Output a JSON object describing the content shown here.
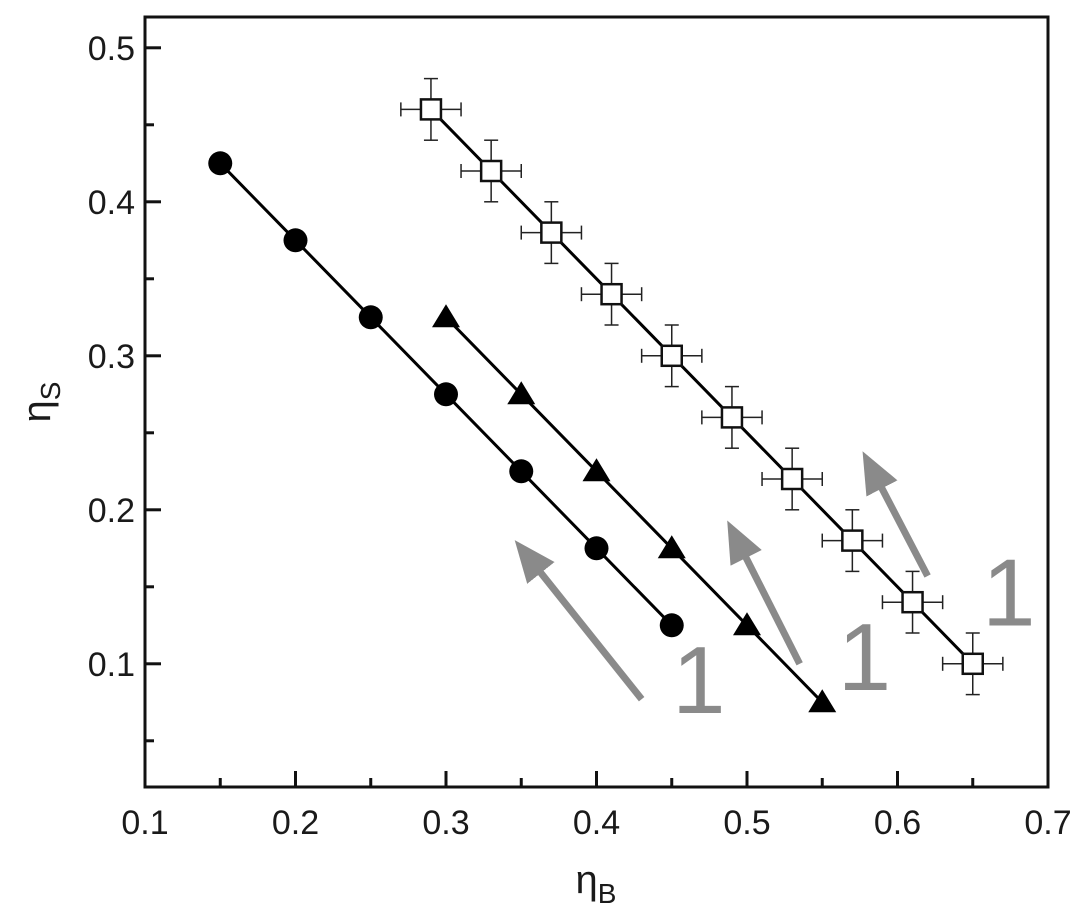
{
  "chart_data": {
    "type": "scatter",
    "xlabel": {
      "base": "η",
      "sub": "B"
    },
    "ylabel": {
      "base": "η",
      "sub": "S"
    },
    "xlim": [
      0.1,
      0.7
    ],
    "ylim": [
      0.02,
      0.52
    ],
    "x_ticks": [
      "0.1",
      "0.2",
      "0.3",
      "0.4",
      "0.5",
      "0.6",
      "0.7"
    ],
    "y_ticks": [
      "0.1",
      "0.2",
      "0.3",
      "0.4",
      "0.5"
    ],
    "series": [
      {
        "marker": "circle",
        "color": "#000000",
        "x": [
          0.15,
          0.2,
          0.25,
          0.3,
          0.35,
          0.4,
          0.45
        ],
        "y": [
          0.425,
          0.375,
          0.325,
          0.275,
          0.225,
          0.175,
          0.125
        ]
      },
      {
        "marker": "triangle",
        "color": "#000000",
        "x": [
          0.3,
          0.35,
          0.4,
          0.45,
          0.5,
          0.55
        ],
        "y": [
          0.325,
          0.275,
          0.225,
          0.175,
          0.125,
          0.075
        ]
      },
      {
        "marker": "open-square",
        "color": "#000000",
        "x": [
          0.29,
          0.33,
          0.37,
          0.41,
          0.45,
          0.49,
          0.53,
          0.57,
          0.61,
          0.65
        ],
        "y": [
          0.46,
          0.42,
          0.38,
          0.34,
          0.3,
          0.26,
          0.22,
          0.18,
          0.14,
          0.1
        ],
        "x_err": 0.02,
        "y_err": 0.02
      }
    ],
    "annotations": [
      {
        "text": "1",
        "arrow_from": [
          0.43,
          0.077
        ],
        "arrow_to": [
          0.35,
          0.175
        ],
        "label_at": [
          0.468,
          0.068
        ]
      },
      {
        "text": "1",
        "arrow_from": [
          0.535,
          0.1
        ],
        "arrow_to": [
          0.49,
          0.187
        ],
        "label_at": [
          0.578,
          0.083
        ]
      },
      {
        "text": "1",
        "arrow_from": [
          0.62,
          0.157
        ],
        "arrow_to": [
          0.58,
          0.232
        ],
        "label_at": [
          0.674,
          0.125
        ]
      }
    ],
    "annotation_color": "#8a8a8a"
  }
}
